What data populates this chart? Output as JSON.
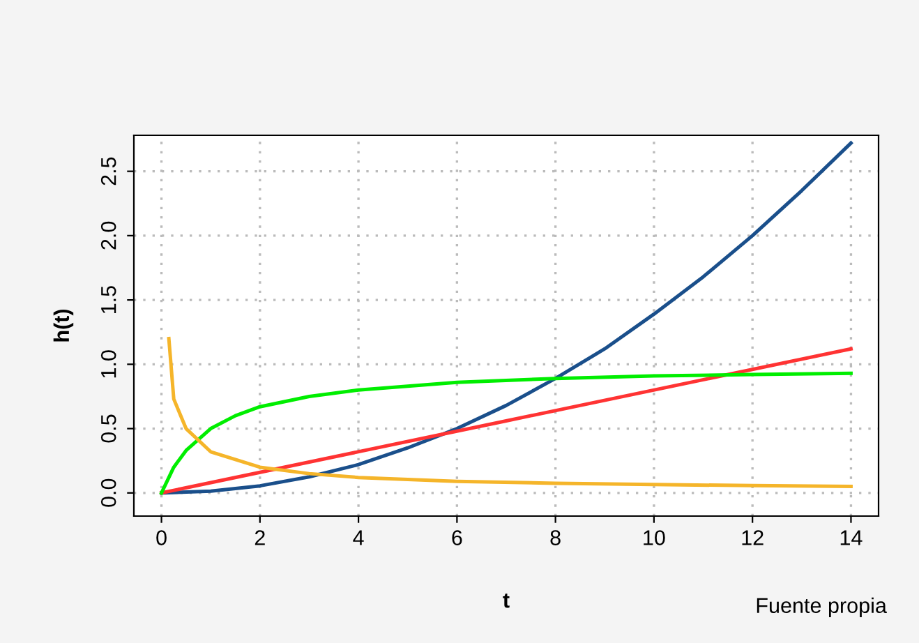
{
  "chart_data": {
    "type": "line",
    "xlabel": "t",
    "ylabel": "h(t)",
    "series": [
      {
        "color": "#1a4f8b",
        "x": [
          0,
          1,
          2,
          3,
          4,
          5,
          6,
          7,
          8,
          9,
          10,
          11,
          12,
          13,
          14
        ],
        "values": [
          0,
          0.014,
          0.055,
          0.125,
          0.22,
          0.35,
          0.5,
          0.68,
          0.89,
          1.12,
          1.39,
          1.68,
          2.0,
          2.35,
          2.72
        ]
      },
      {
        "color": "#ff3333",
        "x": [
          0,
          7,
          14
        ],
        "values": [
          0,
          0.56,
          1.12
        ]
      },
      {
        "color": "#00ee00",
        "x": [
          0,
          0.25,
          0.5,
          1,
          1.5,
          2,
          3,
          4,
          6,
          8,
          10,
          12,
          14
        ],
        "values": [
          0,
          0.2,
          0.33,
          0.5,
          0.6,
          0.67,
          0.75,
          0.8,
          0.86,
          0.89,
          0.91,
          0.92,
          0.93
        ]
      },
      {
        "color": "#f5b52a",
        "x": [
          0.15,
          0.25,
          0.5,
          1,
          2,
          3,
          4,
          6,
          8,
          10,
          12,
          14
        ],
        "values": [
          1.2,
          0.73,
          0.5,
          0.32,
          0.2,
          0.15,
          0.12,
          0.09,
          0.075,
          0.065,
          0.057,
          0.05
        ]
      }
    ],
    "xlim": [
      -0.56,
      14.56
    ],
    "ylim": [
      -0.18,
      2.78
    ],
    "xticks": [
      0,
      2,
      4,
      6,
      8,
      10,
      12,
      14
    ],
    "yticks": [
      {
        "value": 0,
        "label": "0.0"
      },
      {
        "value": 0.5,
        "label": "0.5"
      },
      {
        "value": 1,
        "label": "1.0"
      },
      {
        "value": 1.5,
        "label": "1.5"
      },
      {
        "value": 2,
        "label": "2.0"
      },
      {
        "value": 2.5,
        "label": "2.5"
      }
    ],
    "grid": true,
    "line_style": "solid",
    "marker": "none",
    "annotations": [
      "Fuente propia"
    ]
  }
}
